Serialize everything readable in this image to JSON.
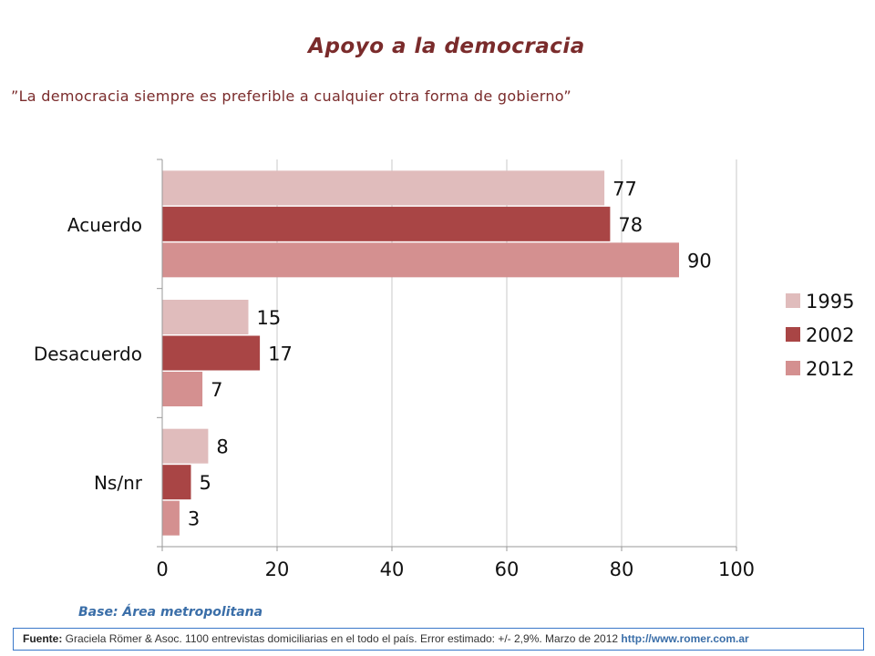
{
  "title": "Apoyo a la democracia",
  "subtitle": "”La democracia siempre es preferible a cualquier otra forma de gobierno”",
  "base": "Base: Área metropolitana",
  "source": {
    "label": "Fuente:",
    "text": " Graciela Römer & Asoc. 1100 entrevistas domiciliarias en el todo el país. Error estimado: +/- 2,9%. Marzo de 2012 ",
    "url": "http://www.romer.com.ar"
  },
  "chart_data": {
    "type": "bar",
    "orientation": "horizontal",
    "categories": [
      "Acuerdo",
      "Desacuerdo",
      "Ns/nr"
    ],
    "series": [
      {
        "name": "1995",
        "values": [
          77,
          15,
          8
        ],
        "color": "#e0bcbc"
      },
      {
        "name": "2002",
        "values": [
          78,
          17,
          5
        ],
        "color": "#a94545"
      },
      {
        "name": "2012",
        "values": [
          90,
          7,
          3
        ],
        "color": "#d49090"
      }
    ],
    "xlim": [
      0,
      100
    ],
    "xticks": [
      0,
      20,
      40,
      60,
      80,
      100
    ],
    "grid": true,
    "legend": "right",
    "data_labels": true
  }
}
